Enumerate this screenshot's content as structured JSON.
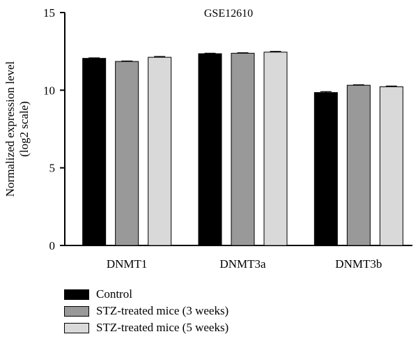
{
  "chart_data": {
    "type": "bar",
    "title": "GSE12610",
    "xlabel": "",
    "ylabel": "Normalized expression level\n(log2 scale)",
    "ylim": [
      0,
      15
    ],
    "yticks": [
      0,
      5,
      10,
      15
    ],
    "categories": [
      "DNMT1",
      "DNMT3a",
      "DNMT3b"
    ],
    "series": [
      {
        "name": "Control",
        "color": "#000000",
        "values": [
          12.05,
          12.35,
          9.85
        ],
        "errors": [
          0.03,
          0.03,
          0.06
        ]
      },
      {
        "name": "STZ-treated mice (3 weeks)",
        "color": "#999999",
        "values": [
          11.85,
          12.38,
          10.32
        ],
        "errors": [
          0.03,
          0.03,
          0.03
        ]
      },
      {
        "name": "STZ-treated mice (5 weeks)",
        "color": "#d9d9d9",
        "values": [
          12.12,
          12.45,
          10.22
        ],
        "errors": [
          0.05,
          0.05,
          0.05
        ]
      }
    ],
    "grid": false,
    "legend_position": "bottom-left"
  }
}
